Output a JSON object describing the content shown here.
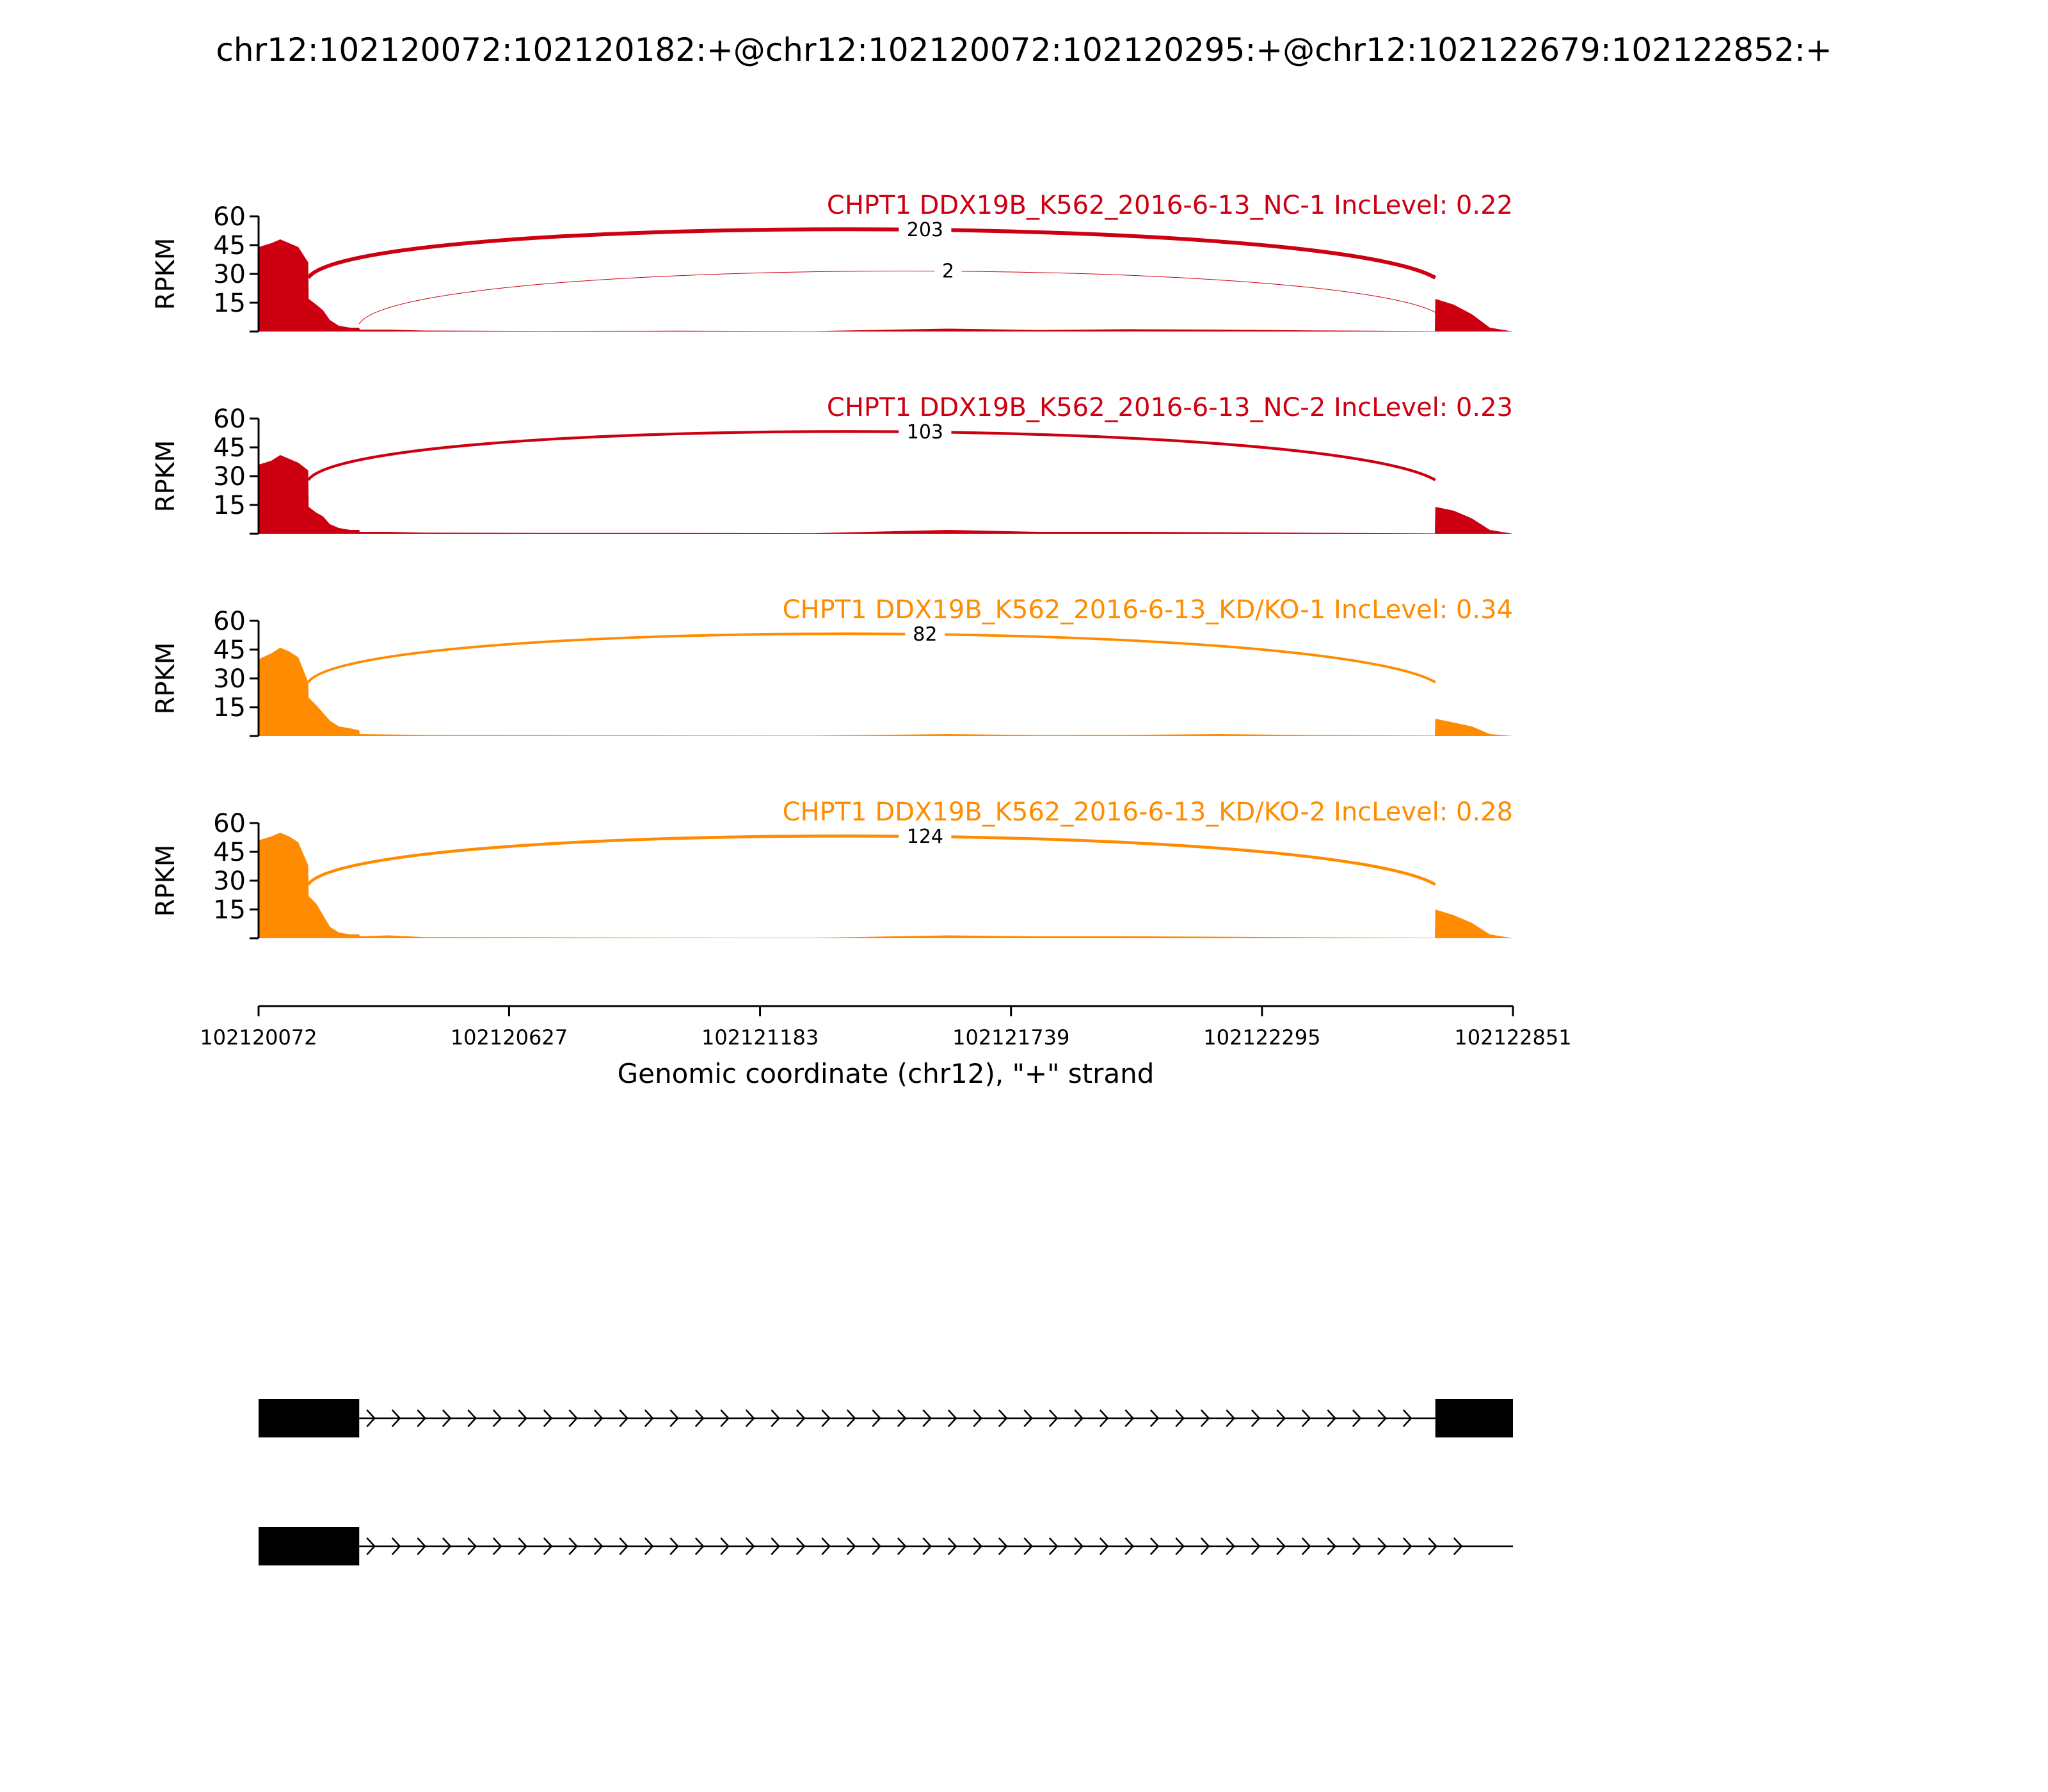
{
  "figure_title": "chr12:102120072:102120182:+@chr12:102120072:102120295:+@chr12:102122679:102122852:+",
  "chart_data": {
    "type": "area",
    "title": "chr12:102120072:102120182:+@chr12:102120072:102120295:+@chr12:102122679:102122852:+",
    "xlabel": "Genomic coordinate (chr12), \"+\" strand",
    "ylabel": "RPKM",
    "xlim": [
      102120072,
      102122851
    ],
    "x_ticks": [
      "102120072",
      "102120627",
      "102121183",
      "102121739",
      "102122295",
      "102122851"
    ],
    "ylim": [
      0,
      60
    ],
    "y_ticks": [
      "15",
      "30",
      "45",
      "60"
    ],
    "grid": false,
    "panels": [
      {
        "name": "CHPT1 DDX19B_K562_2016-6-13_NC-1 IncLevel: 0.22",
        "color": "#cc0011",
        "coverage": [
          {
            "x": 102120072,
            "y": 44
          },
          {
            "x": 102120100,
            "y": 46
          },
          {
            "x": 102120120,
            "y": 48
          },
          {
            "x": 102120140,
            "y": 46
          },
          {
            "x": 102120160,
            "y": 44
          },
          {
            "x": 102120182,
            "y": 36
          },
          {
            "x": 102120183,
            "y": 17
          },
          {
            "x": 102120200,
            "y": 14
          },
          {
            "x": 102120215,
            "y": 11
          },
          {
            "x": 102120230,
            "y": 6
          },
          {
            "x": 102120250,
            "y": 3
          },
          {
            "x": 102120275,
            "y": 2
          },
          {
            "x": 102120295,
            "y": 2
          },
          {
            "x": 102120296,
            "y": 1
          },
          {
            "x": 102120360,
            "y": 1
          },
          {
            "x": 102120440,
            "y": 0.5
          },
          {
            "x": 102120700,
            "y": 0.3
          },
          {
            "x": 102121000,
            "y": 0.4
          },
          {
            "x": 102121300,
            "y": 0.2
          },
          {
            "x": 102121600,
            "y": 1.5
          },
          {
            "x": 102121800,
            "y": 0.8
          },
          {
            "x": 102122000,
            "y": 1.2
          },
          {
            "x": 102122200,
            "y": 1
          },
          {
            "x": 102122400,
            "y": 0.6
          },
          {
            "x": 102122678,
            "y": 0.2
          },
          {
            "x": 102122679,
            "y": 17
          },
          {
            "x": 102122720,
            "y": 14
          },
          {
            "x": 102122760,
            "y": 9
          },
          {
            "x": 102122800,
            "y": 2
          },
          {
            "x": 102122851,
            "y": 0
          }
        ],
        "junctions": [
          {
            "from": 102120182,
            "to": 102122679,
            "count": "203",
            "side": "above"
          },
          {
            "from": 102120295,
            "to": 102122679,
            "count": "2",
            "side": "below"
          }
        ]
      },
      {
        "name": "CHPT1 DDX19B_K562_2016-6-13_NC-2 IncLevel: 0.23",
        "color": "#cc0011",
        "coverage": [
          {
            "x": 102120072,
            "y": 36
          },
          {
            "x": 102120100,
            "y": 38
          },
          {
            "x": 102120120,
            "y": 41
          },
          {
            "x": 102120140,
            "y": 39
          },
          {
            "x": 102120160,
            "y": 37
          },
          {
            "x": 102120182,
            "y": 33
          },
          {
            "x": 102120183,
            "y": 14
          },
          {
            "x": 102120200,
            "y": 11
          },
          {
            "x": 102120215,
            "y": 9
          },
          {
            "x": 102120230,
            "y": 5
          },
          {
            "x": 102120250,
            "y": 3
          },
          {
            "x": 102120275,
            "y": 2
          },
          {
            "x": 102120295,
            "y": 2
          },
          {
            "x": 102120296,
            "y": 1
          },
          {
            "x": 102120360,
            "y": 1
          },
          {
            "x": 102120440,
            "y": 0.6
          },
          {
            "x": 102120700,
            "y": 0.4
          },
          {
            "x": 102121000,
            "y": 0.4
          },
          {
            "x": 102121300,
            "y": 0.3
          },
          {
            "x": 102121600,
            "y": 2
          },
          {
            "x": 102121800,
            "y": 1
          },
          {
            "x": 102122000,
            "y": 1
          },
          {
            "x": 102122200,
            "y": 0.8
          },
          {
            "x": 102122400,
            "y": 0.5
          },
          {
            "x": 102122678,
            "y": 0.2
          },
          {
            "x": 102122679,
            "y": 14
          },
          {
            "x": 102122720,
            "y": 12
          },
          {
            "x": 102122760,
            "y": 8
          },
          {
            "x": 102122800,
            "y": 2
          },
          {
            "x": 102122851,
            "y": 0
          }
        ],
        "junctions": [
          {
            "from": 102120182,
            "to": 102122679,
            "count": "103",
            "side": "above"
          }
        ]
      },
      {
        "name": "CHPT1 DDX19B_K562_2016-6-13_KD/KO-1 IncLevel: 0.34",
        "color": "#ff8c00",
        "coverage": [
          {
            "x": 102120072,
            "y": 40
          },
          {
            "x": 102120100,
            "y": 43
          },
          {
            "x": 102120120,
            "y": 46
          },
          {
            "x": 102120140,
            "y": 44
          },
          {
            "x": 102120160,
            "y": 41
          },
          {
            "x": 102120182,
            "y": 28
          },
          {
            "x": 102120183,
            "y": 20
          },
          {
            "x": 102120200,
            "y": 16
          },
          {
            "x": 102120215,
            "y": 12
          },
          {
            "x": 102120230,
            "y": 8
          },
          {
            "x": 102120250,
            "y": 5
          },
          {
            "x": 102120275,
            "y": 4
          },
          {
            "x": 102120295,
            "y": 3
          },
          {
            "x": 102120296,
            "y": 1
          },
          {
            "x": 102120360,
            "y": 0.8
          },
          {
            "x": 102120440,
            "y": 0.5
          },
          {
            "x": 102120700,
            "y": 0.4
          },
          {
            "x": 102121000,
            "y": 0.3
          },
          {
            "x": 102121300,
            "y": 0.2
          },
          {
            "x": 102121600,
            "y": 1
          },
          {
            "x": 102121800,
            "y": 0.5
          },
          {
            "x": 102122000,
            "y": 0.6
          },
          {
            "x": 102122200,
            "y": 1
          },
          {
            "x": 102122400,
            "y": 0.5
          },
          {
            "x": 102122678,
            "y": 0.2
          },
          {
            "x": 102122679,
            "y": 9
          },
          {
            "x": 102122720,
            "y": 7
          },
          {
            "x": 102122760,
            "y": 5
          },
          {
            "x": 102122800,
            "y": 1
          },
          {
            "x": 102122851,
            "y": 0
          }
        ],
        "junctions": [
          {
            "from": 102120182,
            "to": 102122679,
            "count": "82",
            "side": "above"
          }
        ]
      },
      {
        "name": "CHPT1 DDX19B_K562_2016-6-13_KD/KO-2 IncLevel: 0.28",
        "color": "#ff8c00",
        "coverage": [
          {
            "x": 102120072,
            "y": 51
          },
          {
            "x": 102120100,
            "y": 53
          },
          {
            "x": 102120120,
            "y": 55
          },
          {
            "x": 102120140,
            "y": 53
          },
          {
            "x": 102120160,
            "y": 50
          },
          {
            "x": 102120182,
            "y": 38
          },
          {
            "x": 102120183,
            "y": 22
          },
          {
            "x": 102120200,
            "y": 18
          },
          {
            "x": 102120215,
            "y": 12
          },
          {
            "x": 102120230,
            "y": 6
          },
          {
            "x": 102120250,
            "y": 3
          },
          {
            "x": 102120275,
            "y": 2
          },
          {
            "x": 102120295,
            "y": 2
          },
          {
            "x": 102120296,
            "y": 1
          },
          {
            "x": 102120360,
            "y": 1.5
          },
          {
            "x": 102120440,
            "y": 0.6
          },
          {
            "x": 102120700,
            "y": 0.5
          },
          {
            "x": 102121000,
            "y": 0.3
          },
          {
            "x": 102121300,
            "y": 0.2
          },
          {
            "x": 102121600,
            "y": 1.5
          },
          {
            "x": 102121800,
            "y": 1
          },
          {
            "x": 102122000,
            "y": 1
          },
          {
            "x": 102122200,
            "y": 0.8
          },
          {
            "x": 102122400,
            "y": 0.5
          },
          {
            "x": 102122678,
            "y": 0.2
          },
          {
            "x": 102122679,
            "y": 15
          },
          {
            "x": 102122720,
            "y": 12
          },
          {
            "x": 102122760,
            "y": 8
          },
          {
            "x": 102122800,
            "y": 2
          },
          {
            "x": 102122851,
            "y": 0
          }
        ],
        "junctions": [
          {
            "from": 102120182,
            "to": 102122679,
            "count": "124",
            "side": "above"
          }
        ]
      }
    ],
    "isoforms": [
      {
        "exons": [
          [
            102120072,
            102120182
          ],
          [
            102120072,
            102120295
          ],
          [
            102122679,
            102122851
          ]
        ],
        "intron": [
          102120295,
          102122679
        ]
      },
      {
        "exons": [
          [
            102120072,
            102120182
          ],
          [
            102120072,
            102120295
          ]
        ],
        "intron": [
          102120295,
          102122769
        ]
      }
    ]
  }
}
